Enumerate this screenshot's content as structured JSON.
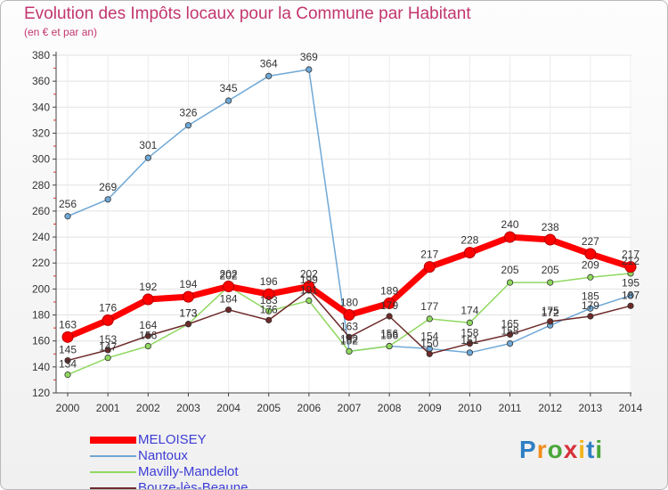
{
  "chart_data": {
    "type": "line",
    "title": "Evolution des Impôts locaux pour la Commune par Habitant",
    "subtitle": "(en € et par an)",
    "categories": [
      "2000",
      "2001",
      "2002",
      "2003",
      "2004",
      "2005",
      "2006",
      "2007",
      "2008",
      "2009",
      "2010",
      "2011",
      "2012",
      "2013",
      "2014"
    ],
    "ylim": [
      120,
      380
    ],
    "yticks": [
      120,
      140,
      160,
      180,
      200,
      220,
      240,
      260,
      280,
      300,
      320,
      340,
      360,
      380
    ],
    "series": [
      {
        "name": "Nantoux",
        "color": "#6fa8d6",
        "values": [
          256,
          269,
          301,
          326,
          345,
          364,
          369,
          152,
          156,
          154,
          151,
          158,
          172,
          185,
          195
        ]
      },
      {
        "name": "Mavilly-Mandelot",
        "color": "#90d860",
        "values": [
          134,
          147,
          156,
          173,
          202,
          183,
          191,
          152,
          156,
          177,
          174,
          205,
          205,
          209,
          212
        ]
      },
      {
        "name": "Bouze-lès-Beaune",
        "color": "#6e2a2a",
        "values": [
          145,
          153,
          164,
          173,
          184,
          176,
          199,
          163,
          179,
          150,
          158,
          165,
          175,
          179,
          187
        ]
      },
      {
        "name": "MELOISEY",
        "color": "#ff0000",
        "values": [
          163,
          176,
          192,
          194,
          202,
          196,
          202,
          180,
          189,
          217,
          228,
          240,
          238,
          227,
          217
        ]
      }
    ],
    "legend_order": [
      "MELOISEY",
      "Nantoux",
      "Mavilly-Mandelot",
      "Bouze-lès-Beaune"
    ]
  },
  "logo_letters": [
    "P",
    "r",
    "o",
    "x",
    "i",
    "t",
    "i"
  ]
}
